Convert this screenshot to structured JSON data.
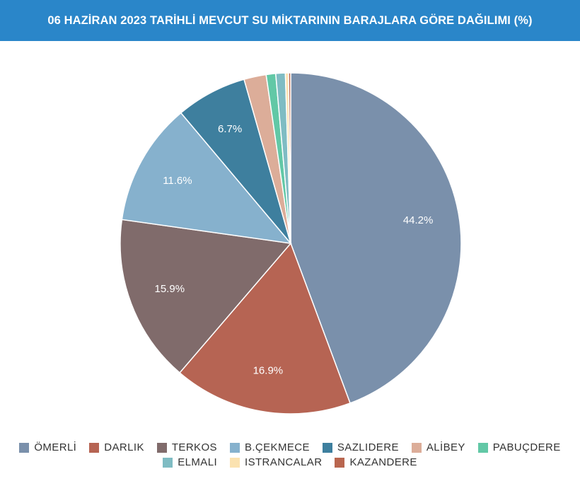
{
  "header": {
    "title": "06 HAZİRAN 2023 TARİHLİ MEVCUT SU MİKTARININ BARAJLARA GÖRE DAĞILIMI (%)"
  },
  "chart_data": {
    "type": "pie",
    "title": "06 HAZİRAN 2023 TARİHLİ MEVCUT SU MİKTARININ BARAJLARA GÖRE DAĞILIMI (%)",
    "legend_position": "bottom",
    "start_angle": "top, clockwise",
    "slices": [
      {
        "name": "ÖMERLİ",
        "value": 44.2,
        "color": "#7a90ab",
        "label": "44.2%"
      },
      {
        "name": "DARLIK",
        "value": 16.9,
        "color": "#b66453",
        "label": "16.9%"
      },
      {
        "name": "TERKOS",
        "value": 15.9,
        "color": "#806b6b",
        "label": "15.9%"
      },
      {
        "name": "B.ÇEKMECE",
        "value": 11.6,
        "color": "#86b1cd",
        "label": "11.6%"
      },
      {
        "name": "SAZLIDERE",
        "value": 6.7,
        "color": "#3e7f9e",
        "label": "6.7%"
      },
      {
        "name": "ALİBEY",
        "value": 2.1,
        "color": "#dcad99",
        "label": ""
      },
      {
        "name": "PABUÇDERE",
        "value": 0.9,
        "color": "#62c8a6",
        "label": ""
      },
      {
        "name": "ELMALI",
        "value": 0.9,
        "color": "#7fbcc3",
        "label": ""
      },
      {
        "name": "ISTRANCALAR",
        "value": 0.3,
        "color": "#fbe2b0",
        "label": ""
      },
      {
        "name": "KAZANDERE",
        "value": 0.2,
        "color": "#b9664f",
        "label": ""
      }
    ]
  }
}
